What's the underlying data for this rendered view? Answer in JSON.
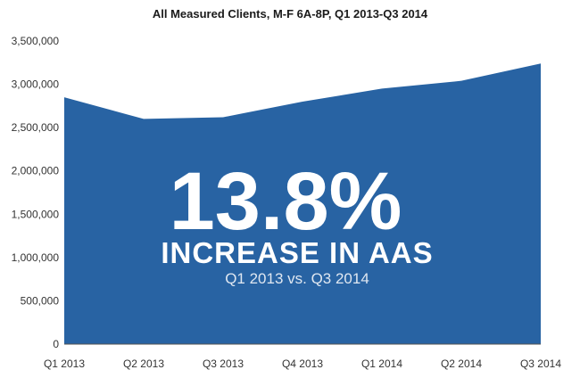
{
  "chart_data": {
    "type": "area",
    "title": "All Measured Clients, M-F 6A-8P, Q1 2013-Q3 2014",
    "categories": [
      "Q1 2013",
      "Q2 2013",
      "Q3 2013",
      "Q4 2013",
      "Q1 2014",
      "Q2 2014",
      "Q3 2014"
    ],
    "values": [
      2850000,
      2600000,
      2620000,
      2800000,
      2950000,
      3040000,
      3240000
    ],
    "y_ticks": [
      "0",
      "500,000",
      "1,000,000",
      "1,500,000",
      "2,000,000",
      "2,500,000",
      "3,000,000",
      "3,500,000"
    ],
    "ylim": [
      0,
      3500000
    ],
    "grid": false,
    "legend": "none",
    "fill_color": "#2863a3",
    "annotation": {
      "headline": "13.8%",
      "subheadline": "INCREASE IN AAS",
      "detail": "Q1 2013 vs. Q3 2014"
    }
  }
}
